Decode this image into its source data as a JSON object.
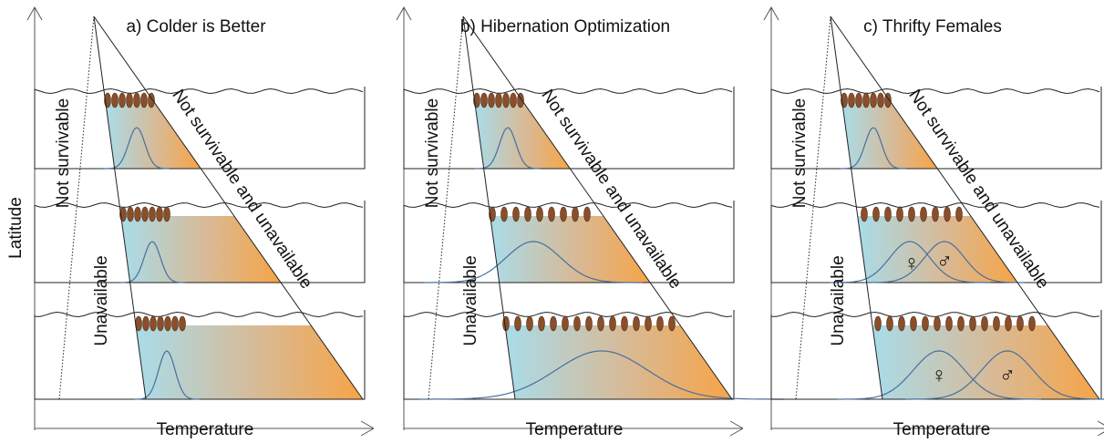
{
  "y_axis_label": "Latitude",
  "panels": [
    {
      "title": "a) Colder is Better",
      "x_axis_label": "Temperature",
      "left_labels": [
        "Not survivable",
        "Unavailable"
      ],
      "right_label": "Not survivable and unavailable"
    },
    {
      "title": "b) Hibernation Optimization",
      "x_axis_label": "Temperature",
      "left_labels": [
        "Not survivable",
        "Unavailable"
      ],
      "right_label": "Not survivable and unavailable"
    },
    {
      "title": "c) Thrifty Females",
      "x_axis_label": "Temperature",
      "left_labels": [
        "Not survivable",
        "Unavailable"
      ],
      "right_label": "Not survivable and unavailable",
      "sex_symbols": [
        "♀",
        "♂"
      ]
    }
  ]
}
